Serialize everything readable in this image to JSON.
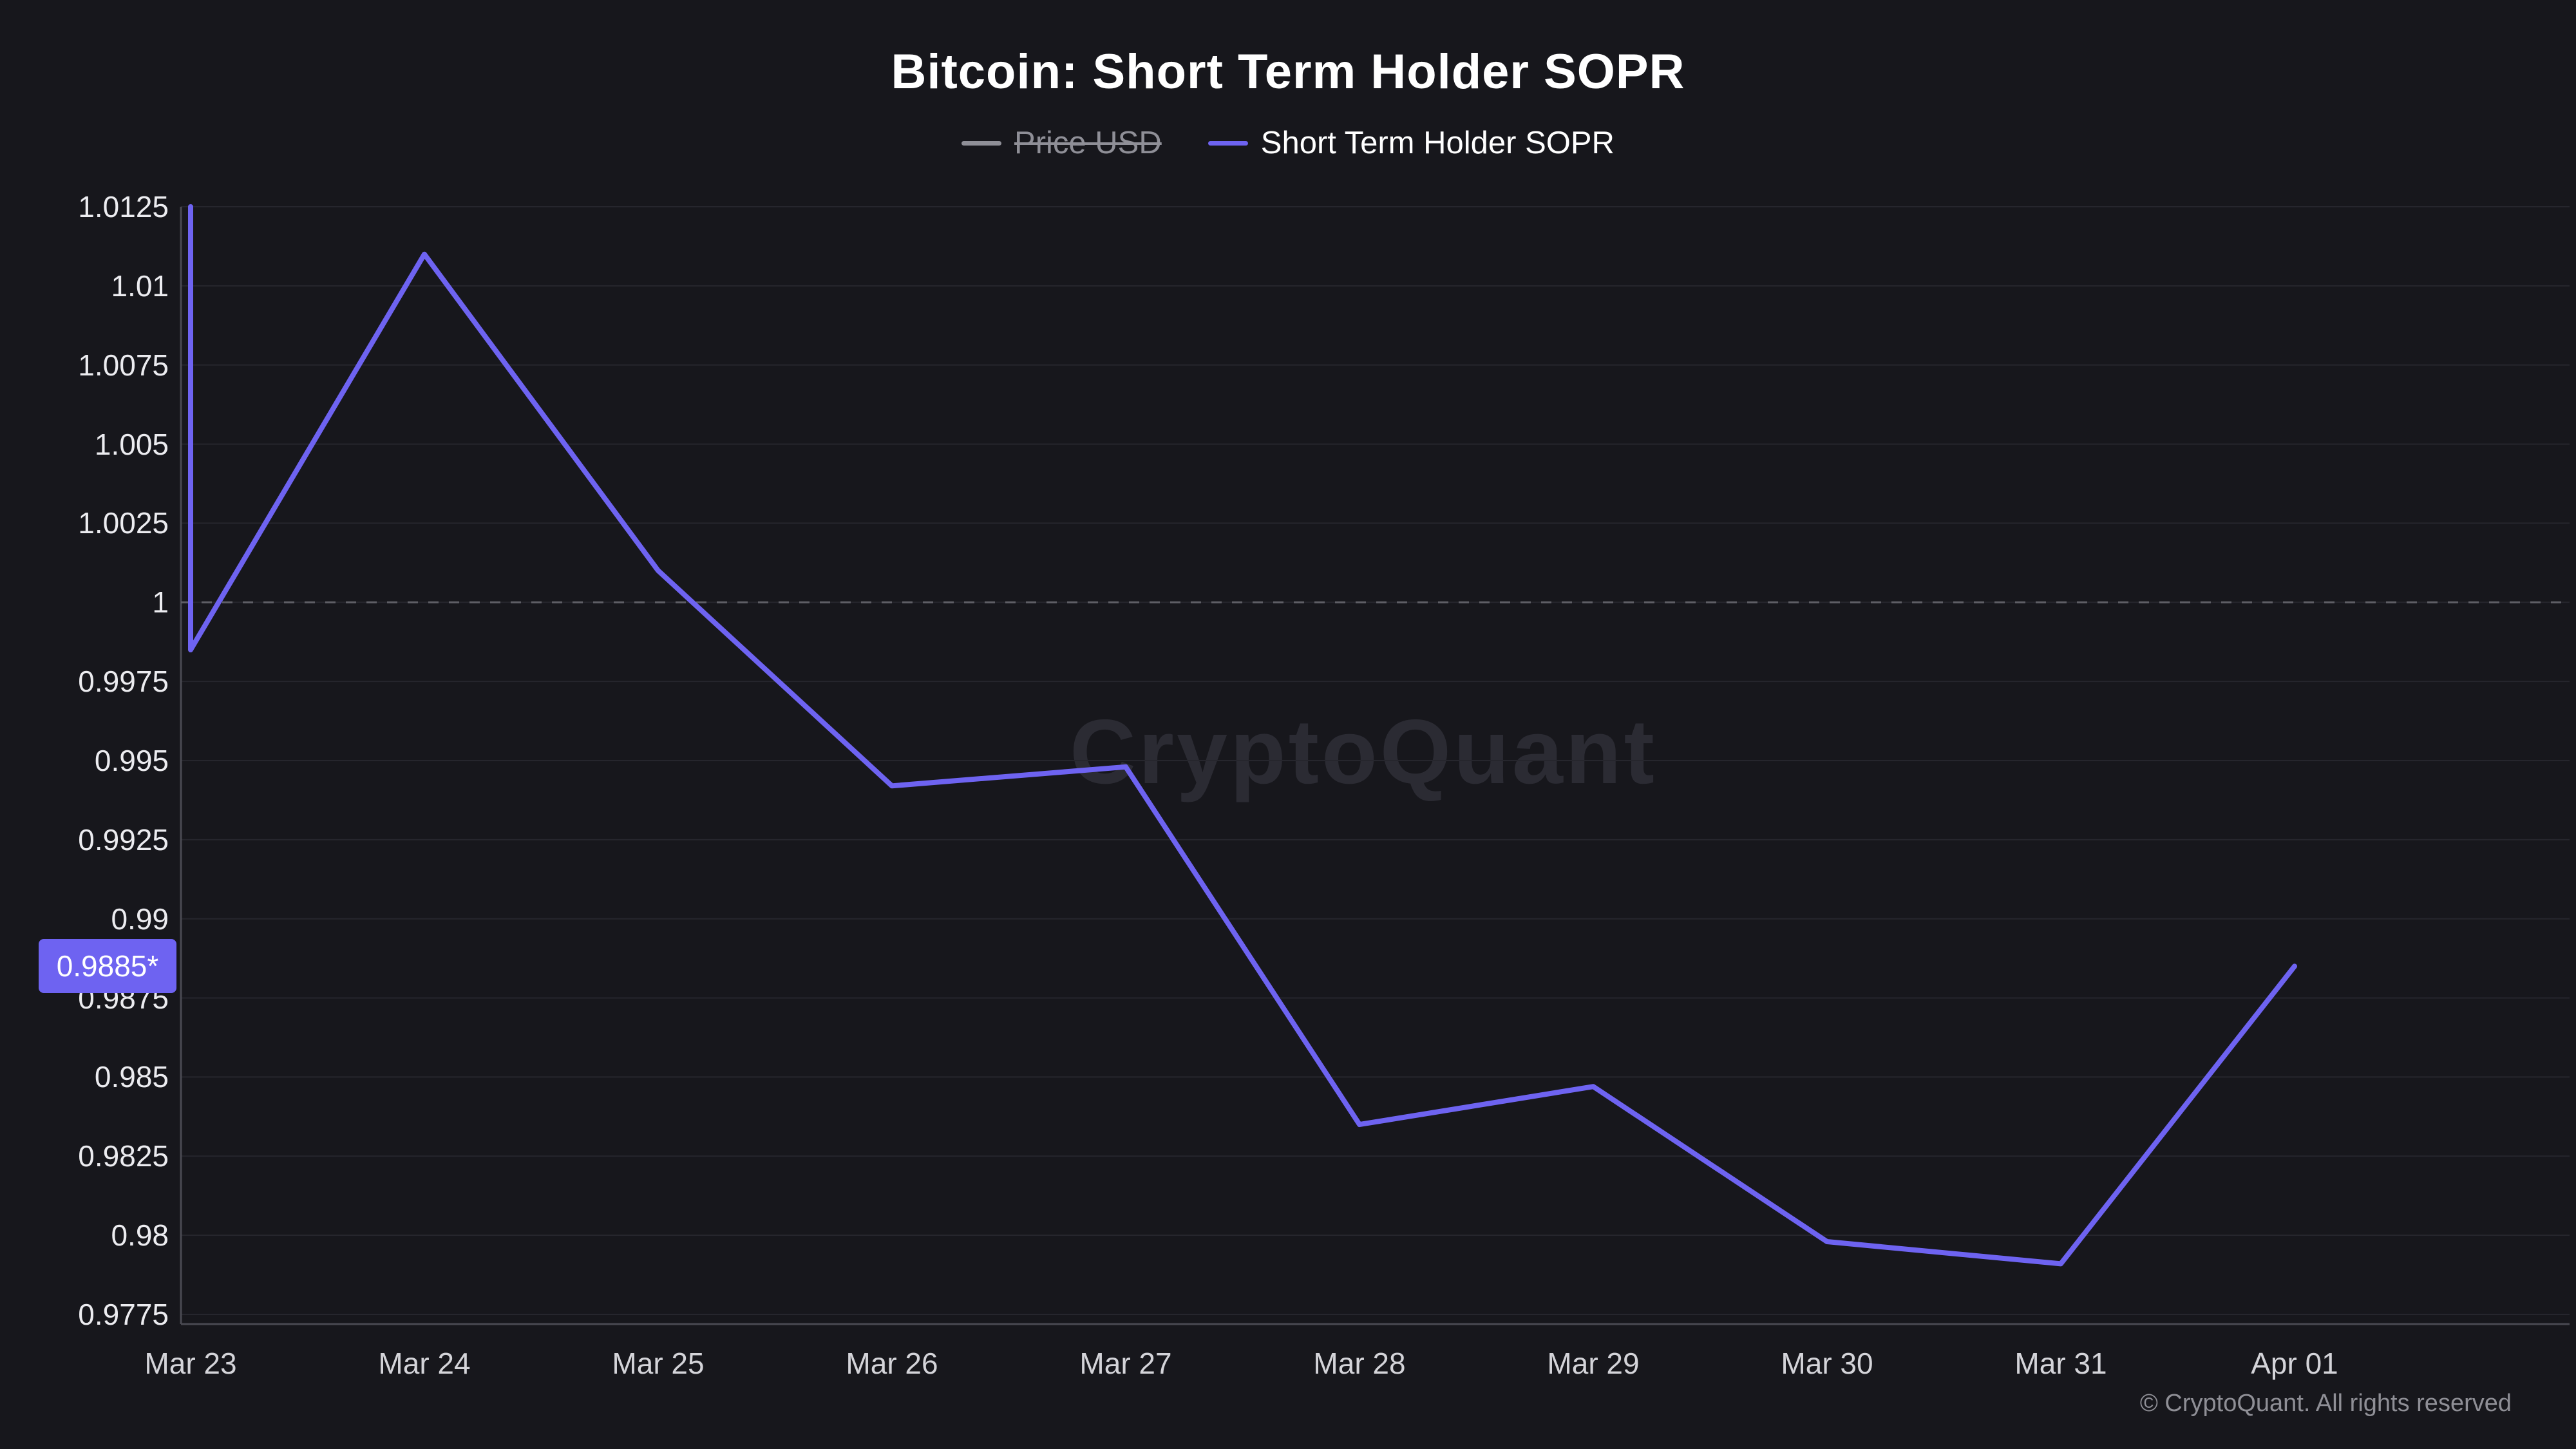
{
  "page": {
    "title": "Bitcoin: Short Term Holder SOPR",
    "watermark": "CryptoQuant",
    "footer": "© CryptoQuant. All rights reserved"
  },
  "legend": {
    "items": [
      {
        "label": "Price USD",
        "color": "#8f8f97",
        "disabled": true
      },
      {
        "label": "Short Term Holder SOPR",
        "color": "#6e63f1",
        "disabled": false
      }
    ]
  },
  "colors": {
    "background": "#17171c",
    "line": "#6e63f1",
    "grid": "#26262d",
    "axis": "#4a4a52",
    "baseline_dash": "#5f5f66",
    "badge_bg": "#6e63f1",
    "badge_text": "#ffffff",
    "tick_text": "#ececf0",
    "watermark": "#2b2b33",
    "footer_text": "#8f8f96"
  },
  "chart_data": {
    "type": "line",
    "title": "Bitcoin: Short Term Holder SOPR",
    "x": [
      "Mar 23",
      "Mar 24",
      "Mar 25",
      "Mar 26",
      "Mar 27",
      "Mar 28",
      "Mar 29",
      "Mar 30",
      "Mar 31",
      "Apr 01"
    ],
    "series": [
      {
        "name": "Short Term Holder SOPR",
        "color": "#6e63f1",
        "values": [
          0.9985,
          1.011,
          1.001,
          0.9942,
          0.9948,
          0.9835,
          0.9847,
          0.9798,
          0.9791,
          0.9885
        ]
      }
    ],
    "ylim": [
      0.9775,
      1.0125
    ],
    "ytick_step": 0.0025,
    "baseline": 1.0,
    "leading_edge_from": 1.0125,
    "current_value": 0.9885,
    "current_value_label": "0.9885*",
    "grid": true,
    "legend_position": "top"
  }
}
